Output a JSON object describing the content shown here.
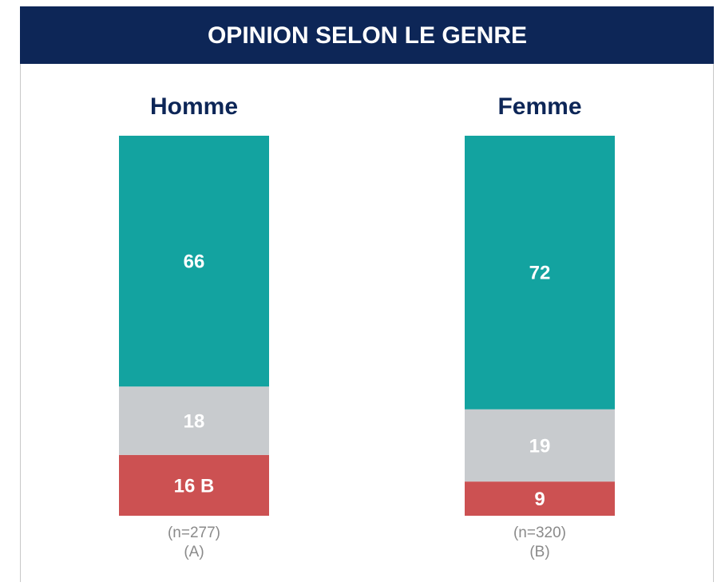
{
  "chart_data": {
    "type": "stacked_bar_100",
    "title": "OPINION SELON LE GENRE",
    "categories": [
      "Homme",
      "Femme"
    ],
    "sample_sizes": [
      "(n=277)",
      "(n=320)"
    ],
    "group_letters": [
      "(A)",
      "(B)"
    ],
    "series": [
      {
        "color": "#13a3a0",
        "values": [
          66,
          72
        ]
      },
      {
        "color": "#c8cbce",
        "values": [
          18,
          19
        ]
      },
      {
        "color": "#cc5152",
        "values": [
          16,
          9
        ],
        "value_labels": [
          "16 B",
          "9"
        ]
      }
    ],
    "ylim": [
      0,
      100
    ]
  }
}
